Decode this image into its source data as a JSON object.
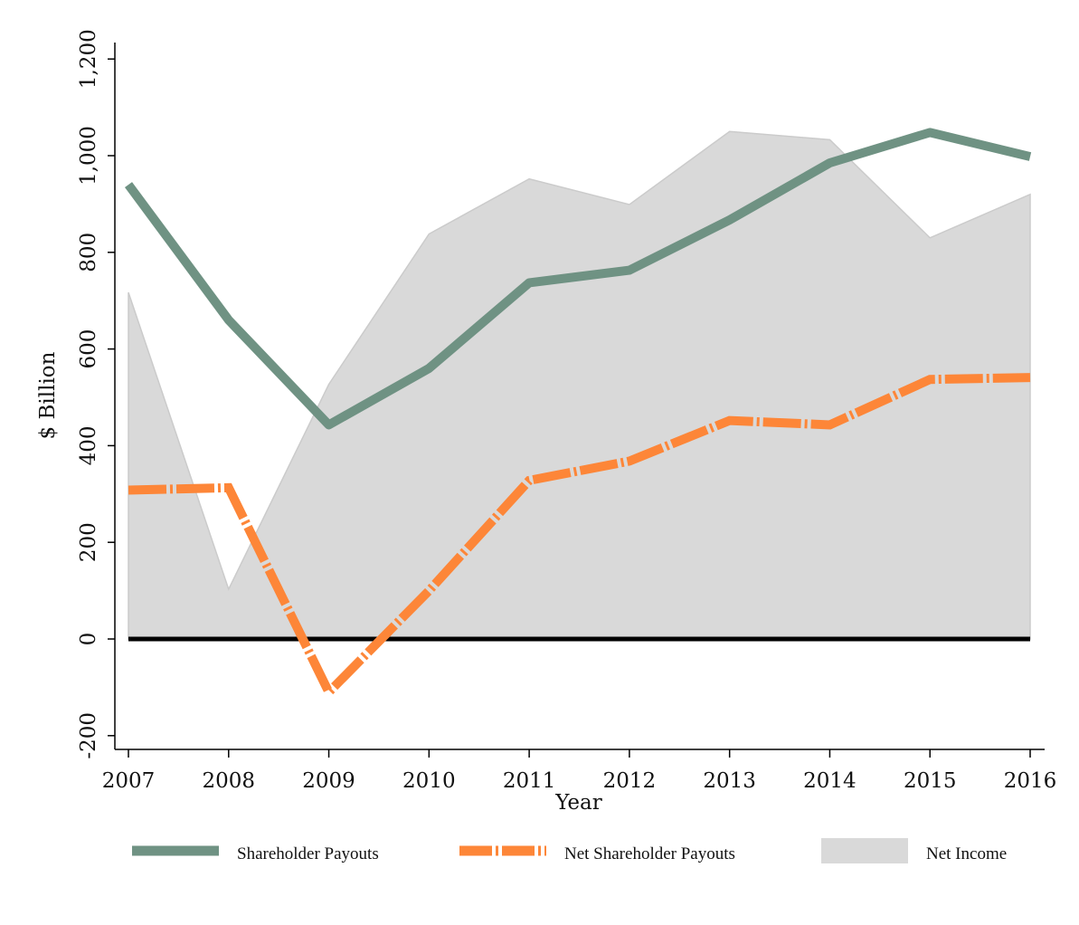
{
  "chart_data": {
    "type": "line",
    "title": "",
    "xlabel": "Year",
    "ylabel": "$ Billion",
    "x": [
      2007,
      2008,
      2009,
      2010,
      2011,
      2012,
      2013,
      2014,
      2015,
      2016
    ],
    "x_tick_labels": [
      "2007",
      "2008",
      "2009",
      "2010",
      "2011",
      "2012",
      "2013",
      "2014",
      "2015",
      "2016"
    ],
    "y_ticks": [
      -200,
      0,
      200,
      400,
      600,
      800,
      1000,
      1200
    ],
    "y_tick_labels": [
      "-200",
      "0",
      "200",
      "400",
      "600",
      "800",
      "1,000",
      "1,200"
    ],
    "ylim": [
      -230,
      1230
    ],
    "grid": false,
    "legend_position": "bottom",
    "series": [
      {
        "name": "Shareholder Payouts",
        "kind": "line",
        "style": "solid",
        "color": "#6f9283",
        "values": [
          940,
          660,
          443,
          560,
          737,
          763,
          867,
          985,
          1048,
          998
        ]
      },
      {
        "name": "Net Shareholder Payouts",
        "kind": "line",
        "style": "dash-dot",
        "color": "#fd8638",
        "values": [
          308,
          313,
          -110,
          100,
          328,
          368,
          452,
          443,
          537,
          541
        ]
      },
      {
        "name": "Net Income",
        "kind": "area",
        "color": "#d9d9d9",
        "edge_color": "#cbcbcb",
        "values": [
          717,
          103,
          527,
          838,
          952,
          899,
          1050,
          1033,
          830,
          920
        ]
      }
    ],
    "reference_line": {
      "y": 0,
      "color": "#000000"
    }
  }
}
